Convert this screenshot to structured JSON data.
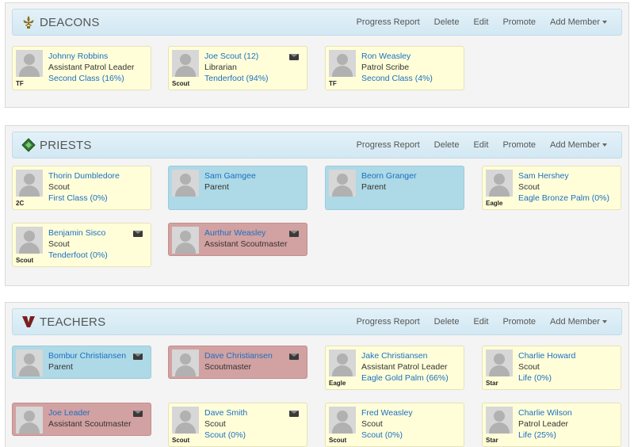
{
  "groups": [
    {
      "title": "DEACONS",
      "icon": "fleur-de-lis-icon",
      "actions": [
        "Progress Report",
        "Delete",
        "Edit",
        "Promote",
        "Add Member"
      ],
      "members": [
        {
          "name": "Johnny Robbins",
          "role": "Assistant Patrol Leader",
          "rank": "Second Class (16%)",
          "badge": "TF",
          "type": "scout",
          "mail": false
        },
        {
          "name": "Joe Scout (12)",
          "role": "Librarian",
          "rank": "Tenderfoot (94%)",
          "badge": "Scout",
          "type": "scout",
          "mail": true
        },
        {
          "name": "Ron Weasley",
          "role": "Patrol Scribe",
          "rank": "Second Class (4%)",
          "badge": "TF",
          "type": "scout",
          "mail": false
        }
      ]
    },
    {
      "title": "PRIESTS",
      "icon": "diamond-icon",
      "actions": [
        "Progress Report",
        "Delete",
        "Edit",
        "Promote",
        "Add Member"
      ],
      "members": [
        {
          "name": "Thorin Dumbledore",
          "role": "Scout",
          "rank": "First Class (0%)",
          "badge": "2C",
          "type": "scout",
          "mail": false
        },
        {
          "name": "Sam Gamgee",
          "role": "Parent",
          "rank": "",
          "badge": "",
          "type": "parent",
          "mail": false
        },
        {
          "name": "Beorn Granger",
          "role": "Parent",
          "rank": "",
          "badge": "",
          "type": "parent",
          "mail": false
        },
        {
          "name": "Sam Hershey",
          "role": "Scout",
          "rank": "Eagle Bronze Palm (0%)",
          "badge": "Eagle",
          "type": "scout",
          "mail": false
        },
        {
          "name": "Benjamin Sisco",
          "role": "Scout",
          "rank": "Tenderfoot (0%)",
          "badge": "Scout",
          "type": "scout",
          "mail": true
        },
        {
          "name": "Aurthur Weasley",
          "role": "Assistant Scoutmaster",
          "rank": "",
          "badge": "",
          "type": "leader",
          "mail": true
        }
      ]
    },
    {
      "title": "TEACHERS",
      "icon": "venturing-v-icon",
      "actions": [
        "Progress Report",
        "Delete",
        "Edit",
        "Promote",
        "Add Member"
      ],
      "members": [
        {
          "name": "Bombur Christiansen",
          "role": "Parent",
          "rank": "",
          "badge": "",
          "type": "parent",
          "mail": true
        },
        {
          "name": "Dave Christiansen",
          "role": "Scoutmaster",
          "rank": "",
          "badge": "",
          "type": "leader",
          "mail": true
        },
        {
          "name": "Jake Christiansen",
          "role": "Assistant Patrol Leader",
          "rank": "Eagle Gold Palm (66%)",
          "badge": "Eagle",
          "type": "scout",
          "mail": false
        },
        {
          "name": "Charlie Howard",
          "role": "Scout",
          "rank": "Life (0%)",
          "badge": "Star",
          "type": "scout",
          "mail": false
        },
        {
          "name": "Joe Leader",
          "role": "Assistant Scoutmaster",
          "rank": "",
          "badge": "",
          "type": "leader",
          "mail": true
        },
        {
          "name": "Dave Smith",
          "role": "Scout",
          "rank": "Scout (0%)",
          "badge": "Scout",
          "type": "scout",
          "mail": true
        },
        {
          "name": "Fred Weasley",
          "role": "Scout",
          "rank": "Scout (0%)",
          "badge": "Scout",
          "type": "scout",
          "mail": false
        },
        {
          "name": "Charlie Wilson",
          "role": "Patrol Leader",
          "rank": "Life (25%)",
          "badge": "Star",
          "type": "scout",
          "mail": false
        }
      ]
    }
  ]
}
